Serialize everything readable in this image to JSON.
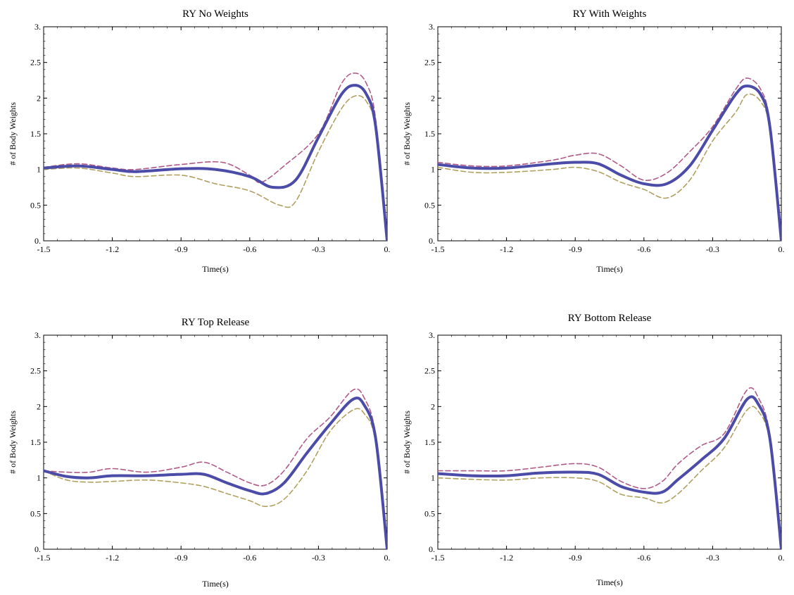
{
  "chart_data": [
    {
      "type": "line",
      "title": "RY No Weights",
      "xlabel": "Time(s)",
      "ylabel": "# of Body Weights",
      "xlim": [
        -1.5,
        0
      ],
      "ylim": [
        0,
        3
      ],
      "xticks": [
        "-1.5",
        "-1.2",
        "-0.9",
        "-0.6",
        "-0.3",
        "0."
      ],
      "yticks": [
        "0.",
        "0.5",
        "1",
        "1.5",
        "2",
        "2.5",
        "3."
      ],
      "grid": false,
      "colors": {
        "mean": "#4b4ba8",
        "upper": "#b05a88",
        "lower": "#b0a060"
      },
      "series": [
        {
          "style": "solid",
          "x": [
            -1.5,
            -1.35,
            -1.2,
            -1.1,
            -0.9,
            -0.75,
            -0.6,
            -0.5,
            -0.4,
            -0.3,
            -0.2,
            -0.14,
            -0.09,
            -0.05,
            0
          ],
          "y": [
            1.02,
            1.05,
            1.0,
            0.97,
            1.01,
            1.0,
            0.9,
            0.75,
            0.85,
            1.45,
            2.05,
            2.18,
            2.05,
            1.6,
            0.0
          ]
        },
        {
          "style": "dashed-upper",
          "x": [
            -1.5,
            -1.35,
            -1.2,
            -1.1,
            -0.9,
            -0.72,
            -0.6,
            -0.55,
            -0.45,
            -0.3,
            -0.2,
            -0.14,
            -0.09,
            -0.05,
            0
          ],
          "y": [
            1.03,
            1.08,
            1.02,
            1.0,
            1.07,
            1.1,
            0.92,
            0.82,
            1.05,
            1.5,
            2.2,
            2.35,
            2.2,
            1.7,
            0.0
          ]
        },
        {
          "style": "dashed-lower",
          "x": [
            -1.5,
            -1.35,
            -1.2,
            -1.1,
            -0.9,
            -0.75,
            -0.6,
            -0.47,
            -0.4,
            -0.3,
            -0.2,
            -0.14,
            -0.09,
            -0.05,
            0
          ],
          "y": [
            1.0,
            1.02,
            0.95,
            0.9,
            0.92,
            0.8,
            0.7,
            0.5,
            0.55,
            1.25,
            1.85,
            2.03,
            1.95,
            1.55,
            0.0
          ]
        }
      ]
    },
    {
      "type": "line",
      "title": "RY With Weights",
      "xlabel": "Time(s)",
      "ylabel": "# of Body Weights",
      "xlim": [
        -1.5,
        0
      ],
      "ylim": [
        0,
        3
      ],
      "xticks": [
        "-1.5",
        "-1.2",
        "-0.9",
        "-0.6",
        "-0.3",
        "0."
      ],
      "yticks": [
        "0.",
        "0.5",
        "1",
        "1.5",
        "2",
        "2.5",
        "3."
      ],
      "grid": false,
      "colors": {
        "mean": "#4b4ba8",
        "upper": "#b05a88",
        "lower": "#b0a060"
      },
      "series": [
        {
          "style": "solid",
          "x": [
            -1.5,
            -1.35,
            -1.2,
            -1.0,
            -0.9,
            -0.8,
            -0.7,
            -0.6,
            -0.5,
            -0.4,
            -0.3,
            -0.2,
            -0.15,
            -0.09,
            -0.05,
            0
          ],
          "y": [
            1.07,
            1.02,
            1.02,
            1.08,
            1.1,
            1.08,
            0.92,
            0.8,
            0.8,
            1.05,
            1.55,
            2.05,
            2.17,
            2.05,
            1.6,
            0.0
          ]
        },
        {
          "style": "dashed-upper",
          "x": [
            -1.5,
            -1.35,
            -1.2,
            -1.0,
            -0.9,
            -0.8,
            -0.7,
            -0.6,
            -0.5,
            -0.4,
            -0.3,
            -0.2,
            -0.15,
            -0.09,
            -0.05,
            0
          ],
          "y": [
            1.1,
            1.05,
            1.05,
            1.13,
            1.2,
            1.22,
            1.05,
            0.85,
            0.95,
            1.25,
            1.6,
            2.12,
            2.28,
            2.12,
            1.65,
            0.0
          ]
        },
        {
          "style": "dashed-lower",
          "x": [
            -1.5,
            -1.35,
            -1.2,
            -1.0,
            -0.9,
            -0.8,
            -0.7,
            -0.6,
            -0.5,
            -0.4,
            -0.3,
            -0.2,
            -0.15,
            -0.09,
            -0.05,
            0
          ],
          "y": [
            1.03,
            0.96,
            0.96,
            1.0,
            1.03,
            0.97,
            0.82,
            0.72,
            0.6,
            0.85,
            1.4,
            1.8,
            2.05,
            1.95,
            1.55,
            0.0
          ]
        }
      ]
    },
    {
      "type": "line",
      "title": "RY Top Release",
      "xlabel": "Time(s)",
      "ylabel": "# of Body Weights",
      "xlim": [
        -1.5,
        0
      ],
      "ylim": [
        0,
        3
      ],
      "xticks": [
        "-1.5",
        "-1.2",
        "-0.9",
        "-0.6",
        "-0.3",
        "0."
      ],
      "yticks": [
        "0.",
        "0.5",
        "1",
        "1.5",
        "2",
        "2.5",
        "3."
      ],
      "grid": false,
      "colors": {
        "mean": "#4b4ba8",
        "upper": "#b05a88",
        "lower": "#b0a060"
      },
      "series": [
        {
          "style": "solid",
          "x": [
            -1.5,
            -1.4,
            -1.3,
            -1.2,
            -1.05,
            -0.9,
            -0.8,
            -0.7,
            -0.6,
            -0.53,
            -0.45,
            -0.35,
            -0.25,
            -0.15,
            -0.1,
            -0.05,
            0
          ],
          "y": [
            1.1,
            1.02,
            1.0,
            1.03,
            1.03,
            1.05,
            1.05,
            0.93,
            0.82,
            0.78,
            0.93,
            1.35,
            1.75,
            2.1,
            2.02,
            1.55,
            0.0
          ]
        },
        {
          "style": "dashed-upper",
          "x": [
            -1.5,
            -1.4,
            -1.3,
            -1.2,
            -1.05,
            -0.9,
            -0.8,
            -0.7,
            -0.6,
            -0.53,
            -0.45,
            -0.35,
            -0.25,
            -0.15,
            -0.1,
            -0.05,
            0
          ],
          "y": [
            1.1,
            1.08,
            1.08,
            1.13,
            1.08,
            1.15,
            1.22,
            1.08,
            0.93,
            0.9,
            1.1,
            1.55,
            1.85,
            2.23,
            2.12,
            1.6,
            0.0
          ]
        },
        {
          "style": "dashed-lower",
          "x": [
            -1.5,
            -1.4,
            -1.3,
            -1.2,
            -1.05,
            -0.9,
            -0.8,
            -0.7,
            -0.6,
            -0.53,
            -0.45,
            -0.35,
            -0.25,
            -0.15,
            -0.1,
            -0.05,
            0
          ],
          "y": [
            1.1,
            0.97,
            0.94,
            0.95,
            0.97,
            0.93,
            0.88,
            0.78,
            0.68,
            0.6,
            0.7,
            1.1,
            1.65,
            1.95,
            1.9,
            1.5,
            0.0
          ]
        }
      ]
    },
    {
      "type": "line",
      "title": "RY Bottom Release",
      "xlabel": "Time(s)",
      "ylabel": "# of Body Weights",
      "xlim": [
        -1.5,
        0
      ],
      "ylim": [
        0,
        3
      ],
      "xticks": [
        "-1.5",
        "-1.2",
        "-0.9",
        "-0.6",
        "-0.3",
        "0."
      ],
      "yticks": [
        "0.",
        "0.5",
        "1",
        "1.5",
        "2",
        "2.5",
        "3."
      ],
      "grid": false,
      "colors": {
        "mean": "#4b4ba8",
        "upper": "#b05a88",
        "lower": "#b0a060"
      },
      "series": [
        {
          "style": "solid",
          "x": [
            -1.5,
            -1.35,
            -1.2,
            -1.05,
            -0.9,
            -0.8,
            -0.7,
            -0.6,
            -0.52,
            -0.45,
            -0.35,
            -0.25,
            -0.15,
            -0.1,
            -0.05,
            0
          ],
          "y": [
            1.06,
            1.03,
            1.03,
            1.07,
            1.08,
            1.05,
            0.88,
            0.8,
            0.8,
            0.98,
            1.25,
            1.55,
            2.1,
            2.03,
            1.55,
            0.0
          ]
        },
        {
          "style": "dashed-upper",
          "x": [
            -1.5,
            -1.35,
            -1.2,
            -1.05,
            -0.9,
            -0.8,
            -0.7,
            -0.6,
            -0.52,
            -0.45,
            -0.35,
            -0.25,
            -0.15,
            -0.1,
            -0.05,
            0
          ],
          "y": [
            1.1,
            1.1,
            1.1,
            1.15,
            1.2,
            1.15,
            0.95,
            0.85,
            0.95,
            1.2,
            1.45,
            1.62,
            2.23,
            2.12,
            1.6,
            0.0
          ]
        },
        {
          "style": "dashed-lower",
          "x": [
            -1.5,
            -1.35,
            -1.2,
            -1.05,
            -0.9,
            -0.8,
            -0.7,
            -0.6,
            -0.52,
            -0.45,
            -0.35,
            -0.25,
            -0.15,
            -0.1,
            -0.05,
            0
          ],
          "y": [
            1.0,
            0.98,
            0.97,
            1.0,
            1.0,
            0.95,
            0.77,
            0.72,
            0.65,
            0.78,
            1.1,
            1.42,
            1.95,
            1.93,
            1.5,
            0.0
          ]
        }
      ]
    }
  ]
}
